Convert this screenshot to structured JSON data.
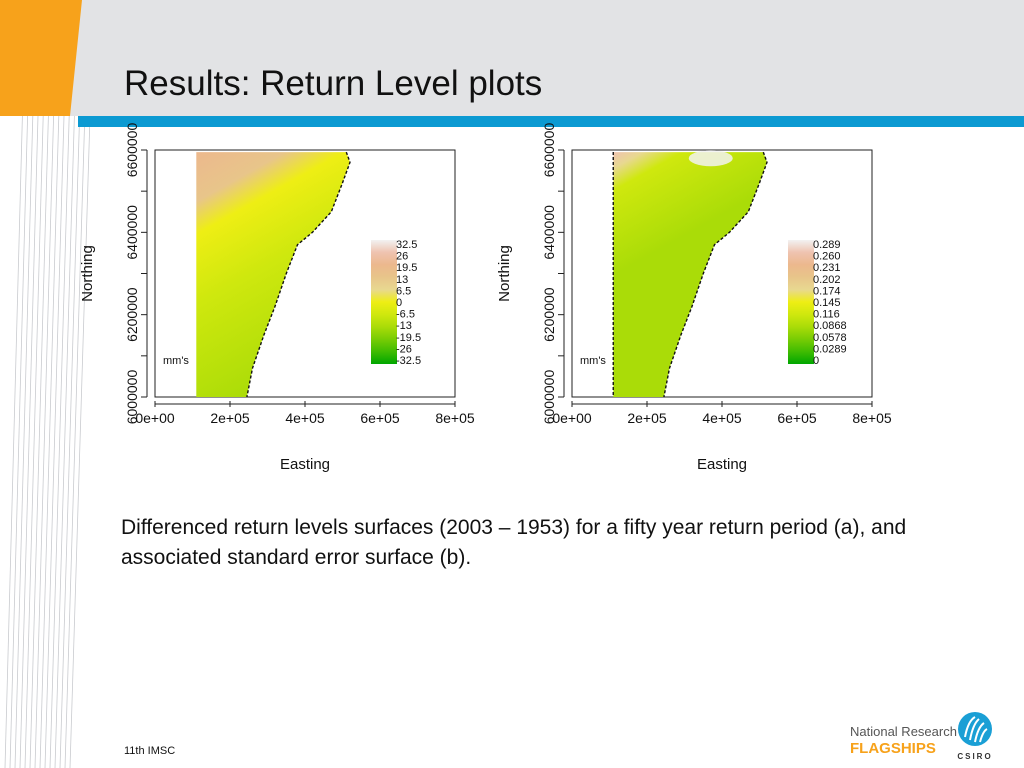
{
  "slide": {
    "title": "Results: Return Level plots",
    "caption": "Differenced return levels surfaces (2003 – 1953) for a fifty year return period (a), and associated standard error surface (b).",
    "footer": "11th IMSC",
    "logo": {
      "line1": "National Research",
      "line2": "FLAGSHIPS",
      "csiro": "CSIRO"
    },
    "colors": {
      "header_bg": "#e2e3e5",
      "accent_blue": "#0c9ad2",
      "accent_orange": "#f7a21b"
    }
  },
  "chart_data": [
    {
      "type": "heatmap",
      "panel": "a",
      "xlabel": "Easting",
      "ylabel": "Northing",
      "x_ticks": [
        "0e+00",
        "2e+05",
        "4e+05",
        "6e+05",
        "8e+05"
      ],
      "y_ticks": [
        "6000000",
        "6200000",
        "6400000",
        "6600000"
      ],
      "xlim": [
        0,
        800000
      ],
      "ylim": [
        6000000,
        6600000
      ],
      "legend_title": "mm's",
      "legend_values": [
        "32.5",
        "26",
        "19.5",
        "13",
        "6.5",
        "0",
        "-6.5",
        "-13",
        "-19.5",
        "-26",
        "-32.5"
      ],
      "legend_colors": [
        "#f2f2f2",
        "#efc3b0",
        "#ecb88d",
        "#e8c58a",
        "#e8d890",
        "#eeee14",
        "#cfe80e",
        "#aadc08",
        "#78cc04",
        "#40bc02",
        "#00a600"
      ]
    },
    {
      "type": "heatmap",
      "panel": "b",
      "xlabel": "Easting",
      "ylabel": "Northing",
      "x_ticks": [
        "0e+00",
        "2e+05",
        "4e+05",
        "6e+05",
        "8e+05"
      ],
      "y_ticks": [
        "6000000",
        "6200000",
        "6400000",
        "6600000"
      ],
      "xlim": [
        0,
        800000
      ],
      "ylim": [
        6000000,
        6600000
      ],
      "legend_title": "mm's",
      "legend_values": [
        "0.289",
        "0.260",
        "0.231",
        "0.202",
        "0.174",
        "0.145",
        "0.116",
        "0.0868",
        "0.0578",
        "0.0289",
        "0"
      ],
      "legend_colors": [
        "#f2f2f2",
        "#efc3b0",
        "#ecb88d",
        "#e8c58a",
        "#e8d890",
        "#eeee14",
        "#cfe80e",
        "#aadc08",
        "#78cc04",
        "#40bc02",
        "#00a600"
      ]
    }
  ]
}
